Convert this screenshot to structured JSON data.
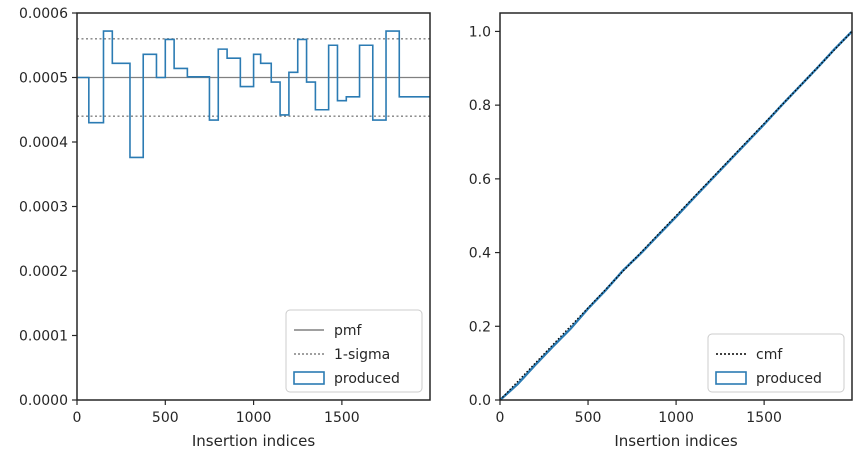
{
  "chart_data": [
    {
      "type": "histogram-step",
      "xlabel": "Insertion indices",
      "ylabel": "",
      "xlim": [
        0,
        1999
      ],
      "ylim": [
        0,
        0.0006
      ],
      "x_ticks": [
        0,
        500,
        1000,
        1500
      ],
      "x_tick_labels": [
        "0",
        "500",
        "1000",
        "1500"
      ],
      "y_ticks": [
        0,
        0.0001,
        0.0002,
        0.0003,
        0.0004,
        0.0005,
        0.0006
      ],
      "y_tick_labels": [
        "0.0000",
        "0.0001",
        "0.0002",
        "0.0003",
        "0.0004",
        "0.0005",
        "0.0006"
      ],
      "pmf": 0.0005,
      "sigma_lower": 0.00044,
      "sigma_upper": 0.00056,
      "bin_edges": [
        67,
        150,
        200,
        250,
        300,
        375,
        450,
        500,
        550,
        625,
        700,
        750,
        800,
        850,
        925,
        1000,
        1040,
        1100,
        1150,
        1200,
        1250,
        1300,
        1350,
        1425,
        1475,
        1525,
        1600,
        1675,
        1750,
        1825,
        1890,
        1999
      ],
      "series": [
        {
          "name": "produced",
          "values": [
            0.00043,
            0.000572,
            0.000522,
            0.000522,
            0.000376,
            0.000536,
            0.0005,
            0.000559,
            0.000514,
            0.000501,
            0.000501,
            0.000434,
            0.000544,
            0.00053,
            0.000486,
            0.000536,
            0.000522,
            0.000493,
            0.000442,
            0.000508,
            0.000559,
            0.000493,
            0.00045,
            0.00055,
            0.000464,
            0.00047,
            0.00055,
            0.000434,
            0.000572,
            0.00047,
            0.00047
          ]
        }
      ],
      "legend": {
        "placement": "lower right",
        "entries": [
          {
            "label": "pmf",
            "style": "solid",
            "color": "#808080"
          },
          {
            "label": "1-sigma",
            "style": "dotted",
            "color": "#808080"
          },
          {
            "label": "produced",
            "style": "step",
            "color": "#2b7bb3"
          }
        ]
      }
    },
    {
      "type": "line",
      "xlabel": "Insertion indices",
      "ylabel": "",
      "xlim": [
        0,
        1999
      ],
      "ylim": [
        0,
        1.05
      ],
      "x_ticks": [
        0,
        500,
        1000,
        1500
      ],
      "x_tick_labels": [
        "0",
        "500",
        "1000",
        "1500"
      ],
      "y_ticks": [
        0,
        0.2,
        0.4,
        0.6,
        0.8,
        1.0
      ],
      "y_tick_labels": [
        "0.0",
        "0.2",
        "0.4",
        "0.6",
        "0.8",
        "1.0"
      ],
      "series": [
        {
          "name": "cmf",
          "x": [
            0,
            1999
          ],
          "y": [
            0,
            1.0
          ]
        },
        {
          "name": "produced",
          "x": [
            0,
            100,
            200,
            300,
            400,
            500,
            600,
            700,
            800,
            900,
            1000,
            1100,
            1200,
            1300,
            1400,
            1500,
            1600,
            1700,
            1800,
            1900,
            1999
          ],
          "y": [
            0,
            0.043,
            0.095,
            0.145,
            0.193,
            0.248,
            0.298,
            0.352,
            0.398,
            0.448,
            0.497,
            0.548,
            0.598,
            0.648,
            0.698,
            0.748,
            0.8,
            0.85,
            0.9,
            0.952,
            1.0
          ]
        }
      ],
      "legend": {
        "placement": "lower right",
        "entries": [
          {
            "label": "cmf",
            "style": "dotted",
            "color": "#000000"
          },
          {
            "label": "produced",
            "style": "step",
            "color": "#2b7bb3"
          }
        ]
      }
    }
  ],
  "colors": {
    "produced": "#2b7bb3",
    "pmf": "#808080",
    "sigma": "#808080",
    "cmf": "#000000",
    "axes": "#262626"
  }
}
